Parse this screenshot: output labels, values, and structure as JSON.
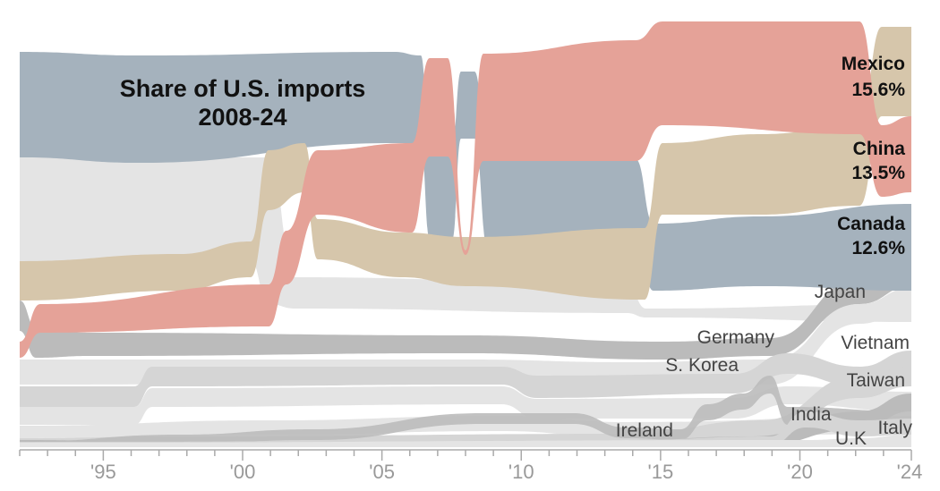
{
  "chart_data": {
    "type": "bump-stream",
    "title": [
      "Share of U.S. imports",
      "2008-24"
    ],
    "x_ticks": [
      "'95",
      "'00",
      "'05",
      "'10",
      "'15",
      "'20",
      "'24"
    ],
    "x_tick_years": [
      1995,
      2000,
      2005,
      2010,
      2015,
      2020,
      2024
    ],
    "x_range": [
      1992,
      2024
    ],
    "highlighted": [
      {
        "name": "Mexico",
        "value": "15.6%",
        "color": "#d6c6ab"
      },
      {
        "name": "China",
        "value": "13.5%",
        "color": "#e5a298"
      },
      {
        "name": "Canada",
        "value": "12.6%",
        "color": "#a5b2bd"
      }
    ],
    "other_labels": [
      "Japan",
      "Germany",
      "Vietnam",
      "S. Korea",
      "Taiwan",
      "India",
      "Ireland",
      "Italy",
      "U.K"
    ],
    "colors": {
      "light_band": "#e4e4e4",
      "mid_band": "#d5d5d5",
      "dark_band": "#bbbbbb",
      "axis": "#aaaaaa"
    }
  }
}
